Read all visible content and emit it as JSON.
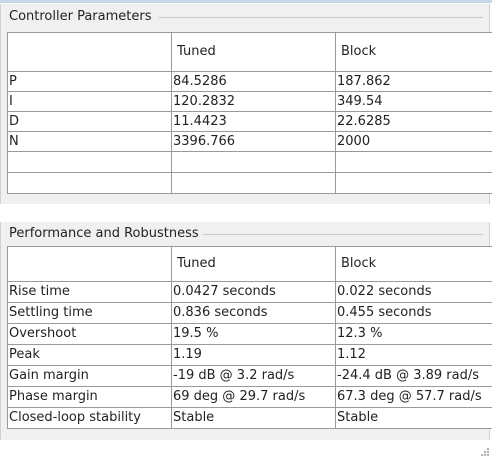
{
  "controller_parameters": {
    "title": "Controller Parameters",
    "columns": [
      "",
      "Tuned",
      "Block"
    ],
    "rows": [
      [
        "P",
        "84.5286",
        "187.862"
      ],
      [
        "I",
        "120.2832",
        "349.54"
      ],
      [
        "D",
        "11.4423",
        "22.6285"
      ],
      [
        "N",
        "3396.766",
        "2000"
      ],
      [
        "",
        "",
        ""
      ],
      [
        "",
        "",
        ""
      ]
    ]
  },
  "performance_robustness": {
    "title": "Performance and Robustness",
    "columns": [
      "",
      "Tuned",
      "Block"
    ],
    "rows": [
      [
        "Rise time",
        "0.0427 seconds",
        "0.022 seconds"
      ],
      [
        "Settling time",
        "0.836 seconds",
        "0.455 seconds"
      ],
      [
        "Overshoot",
        "19.5 %",
        "12.3 %"
      ],
      [
        "Peak",
        "1.19",
        "1.12"
      ],
      [
        "Gain margin",
        "-19 dB @ 3.2 rad/s",
        "-24.4 dB @ 3.89 rad/s"
      ],
      [
        "Phase margin",
        "69 deg @ 29.7 rad/s",
        "67.3 deg @ 57.7 rad/s"
      ],
      [
        "Closed-loop stability",
        "Stable",
        "Stable"
      ]
    ]
  },
  "colors": {
    "panel_bg": "#f0f0f0",
    "grid_line": "#9a9a9a",
    "cell_bg": "#ffffff",
    "text": "#222222"
  },
  "icons": {
    "resize_grip": "resize-grip-icon"
  }
}
